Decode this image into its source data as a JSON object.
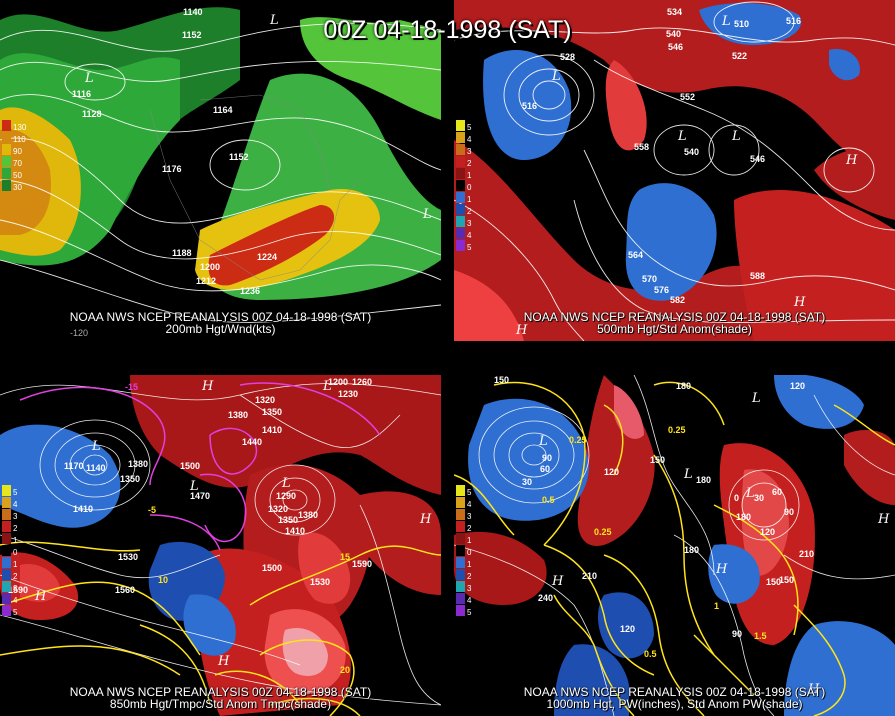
{
  "title": "00Z 04-18-1998 (SAT)",
  "colors": {
    "background": "#000000",
    "contour": "#ffffff",
    "pw_contour": "#ffff33",
    "temp_contour": "#ff33ff",
    "positive": "#dd2222",
    "negative": "#2e6fd1"
  },
  "panels": [
    {
      "caption_top": "NOAA NWS NCEP REANALYSIS 00Z 04-18-1998 (SAT)",
      "caption_bottom": "200mb Hgt/Wnd(kts)",
      "legend": [
        "130",
        "110",
        "90",
        "70",
        "50",
        "30"
      ],
      "contour_labels": [
        "1140",
        "1152",
        "1116",
        "1128",
        "1164",
        "1176",
        "1152",
        "1188",
        "1200",
        "1212",
        "1224",
        "1236"
      ],
      "lows": [
        "L",
        "L",
        "L"
      ],
      "lon_labels": [
        "-120"
      ]
    },
    {
      "caption_top": "NOAA NWS NCEP REANALYSIS 00Z 04-18-1998 (SAT)",
      "caption_bottom": "500mb Hgt/Std Anom(shade)",
      "legend": [
        "5",
        "4",
        "3",
        "2",
        "1",
        "0",
        "1",
        "2",
        "3",
        "4",
        "5"
      ],
      "contour_labels": [
        "534",
        "540",
        "546",
        "510",
        "516",
        "522",
        "528",
        "516",
        "552",
        "558",
        "540",
        "546",
        "564",
        "570",
        "576",
        "582",
        "588"
      ],
      "lows": [
        "L",
        "L",
        "L",
        "L",
        "L"
      ],
      "highs": [
        "H",
        "H",
        "H"
      ]
    },
    {
      "caption_top": "NOAA NWS NCEP REANALYSIS 00Z 04-18-1998 (SAT)",
      "caption_bottom": "850mb Hgt/Tmpc/Std Anom Tmpc(shade)",
      "legend": [
        "5",
        "4",
        "3",
        "2",
        "1",
        "0",
        "1",
        "2",
        "3",
        "4",
        "5"
      ],
      "contour_labels": [
        "-15",
        "1200",
        "1260",
        "1230",
        "1320",
        "1350",
        "1380",
        "1410",
        "1440",
        "1170",
        "1140",
        "1380",
        "1350",
        "1410",
        "1500",
        "1470",
        "1290",
        "1320",
        "1350",
        "1380",
        "1410",
        "1530",
        "1500",
        "1590",
        "1560",
        "1530",
        "1590",
        "-5",
        "10",
        "15",
        "20"
      ],
      "lows": [
        "L",
        "L",
        "L",
        "L"
      ],
      "highs": [
        "H",
        "H",
        "H",
        "H"
      ]
    },
    {
      "caption_top": "NOAA NWS NCEP REANALYSIS 00Z 04-18-1998 (SAT)",
      "caption_bottom": "1000mb Hgt, PW(inches), Std Anom PW(shade)",
      "legend": [
        "5",
        "4",
        "3",
        "2",
        "1",
        "0",
        "1",
        "2",
        "3",
        "4",
        "5"
      ],
      "contour_labels": [
        "150",
        "180",
        "120",
        "90",
        "60",
        "30",
        "0.25",
        "0.25",
        "0.5",
        "120",
        "150",
        "180",
        "0",
        "30",
        "60",
        "90",
        "120",
        "150",
        "180",
        "210",
        "0.25",
        "0.5",
        "1",
        "1.5",
        "210",
        "240",
        "120",
        "180",
        "150",
        "90"
      ],
      "lows": [
        "L",
        "L",
        "L",
        "L"
      ],
      "highs": [
        "H",
        "H",
        "H",
        "H"
      ]
    }
  ]
}
